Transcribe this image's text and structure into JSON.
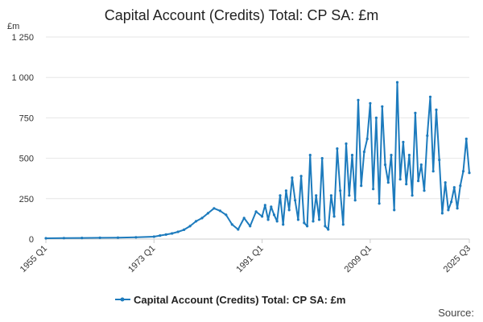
{
  "chart_data": {
    "type": "line",
    "title": "Capital Account (Credits) Total: CP SA: £m",
    "ylabel": "£m",
    "ylim": [
      0,
      1250
    ],
    "yticks": [
      0,
      250,
      500,
      750,
      1000,
      1250
    ],
    "ytick_labels": [
      "0",
      "250",
      "500",
      "750",
      "1 000",
      "1 250"
    ],
    "x_range": [
      "1955 Q1",
      "2025 Q3"
    ],
    "xtick_labels": [
      "1955 Q1",
      "1973 Q1",
      "1991 Q1",
      "2009 Q1",
      "2025 Q3"
    ],
    "grid": "horizontal",
    "legend_position": "bottom",
    "series": [
      {
        "name": "Capital Account (Credits) Total: CP SA: £m",
        "color": "#1d7bbd",
        "x": [
          "1955 Q1",
          "1958 Q1",
          "1961 Q1",
          "1964 Q1",
          "1967 Q1",
          "1970 Q1",
          "1973 Q1",
          "1974 Q1",
          "1975 Q1",
          "1976 Q1",
          "1977 Q1",
          "1978 Q1",
          "1979 Q1",
          "1980 Q1",
          "1981 Q1",
          "1982 Q1",
          "1983 Q1",
          "1984 Q1",
          "1985 Q1",
          "1986 Q1",
          "1987 Q1",
          "1988 Q1",
          "1989 Q1",
          "1990 Q1",
          "1991 Q1",
          "1991 Q3",
          "1992 Q1",
          "1992 Q3",
          "1993 Q1",
          "1993 Q3",
          "1994 Q1",
          "1994 Q3",
          "1995 Q1",
          "1995 Q3",
          "1996 Q1",
          "1996 Q3",
          "1997 Q1",
          "1997 Q3",
          "1998 Q1",
          "1998 Q3",
          "1999 Q1",
          "1999 Q3",
          "2000 Q1",
          "2000 Q3",
          "2001 Q1",
          "2001 Q3",
          "2002 Q1",
          "2002 Q3",
          "2003 Q1",
          "2003 Q3",
          "2004 Q1",
          "2004 Q3",
          "2005 Q1",
          "2005 Q3",
          "2006 Q1",
          "2006 Q3",
          "2007 Q1",
          "2007 Q3",
          "2008 Q1",
          "2008 Q3",
          "2009 Q1",
          "2009 Q3",
          "2010 Q1",
          "2010 Q3",
          "2011 Q1",
          "2011 Q3",
          "2012 Q1",
          "2012 Q3",
          "2013 Q1",
          "2013 Q3",
          "2014 Q1",
          "2014 Q3",
          "2015 Q1",
          "2015 Q3",
          "2016 Q1",
          "2016 Q3",
          "2017 Q1",
          "2017 Q3",
          "2018 Q1",
          "2018 Q3",
          "2019 Q1",
          "2019 Q3",
          "2020 Q1",
          "2020 Q3",
          "2021 Q1",
          "2021 Q3",
          "2022 Q1",
          "2022 Q3",
          "2023 Q1",
          "2023 Q3",
          "2024 Q1",
          "2024 Q3",
          "2025 Q1",
          "2025 Q3"
        ],
        "values": [
          5,
          6,
          7,
          8,
          9,
          11,
          15,
          22,
          28,
          35,
          45,
          58,
          80,
          110,
          130,
          160,
          190,
          175,
          150,
          90,
          60,
          130,
          80,
          170,
          140,
          210,
          120,
          200,
          150,
          110,
          270,
          90,
          300,
          180,
          380,
          240,
          120,
          390,
          100,
          80,
          520,
          110,
          270,
          120,
          500,
          80,
          60,
          270,
          140,
          560,
          300,
          90,
          590,
          270,
          520,
          240,
          860,
          330,
          540,
          620,
          840,
          310,
          750,
          220,
          820,
          460,
          350,
          520,
          180,
          970,
          370,
          600,
          340,
          520,
          270,
          780,
          360,
          460,
          300,
          640,
          880,
          420,
          800,
          490,
          160,
          350,
          180,
          230,
          320,
          190,
          330,
          420,
          620,
          410
        ]
      }
    ]
  },
  "legend": {
    "label": "Capital Account (Credits) Total: CP SA: £m"
  },
  "footer": {
    "source_label": "Source:"
  }
}
